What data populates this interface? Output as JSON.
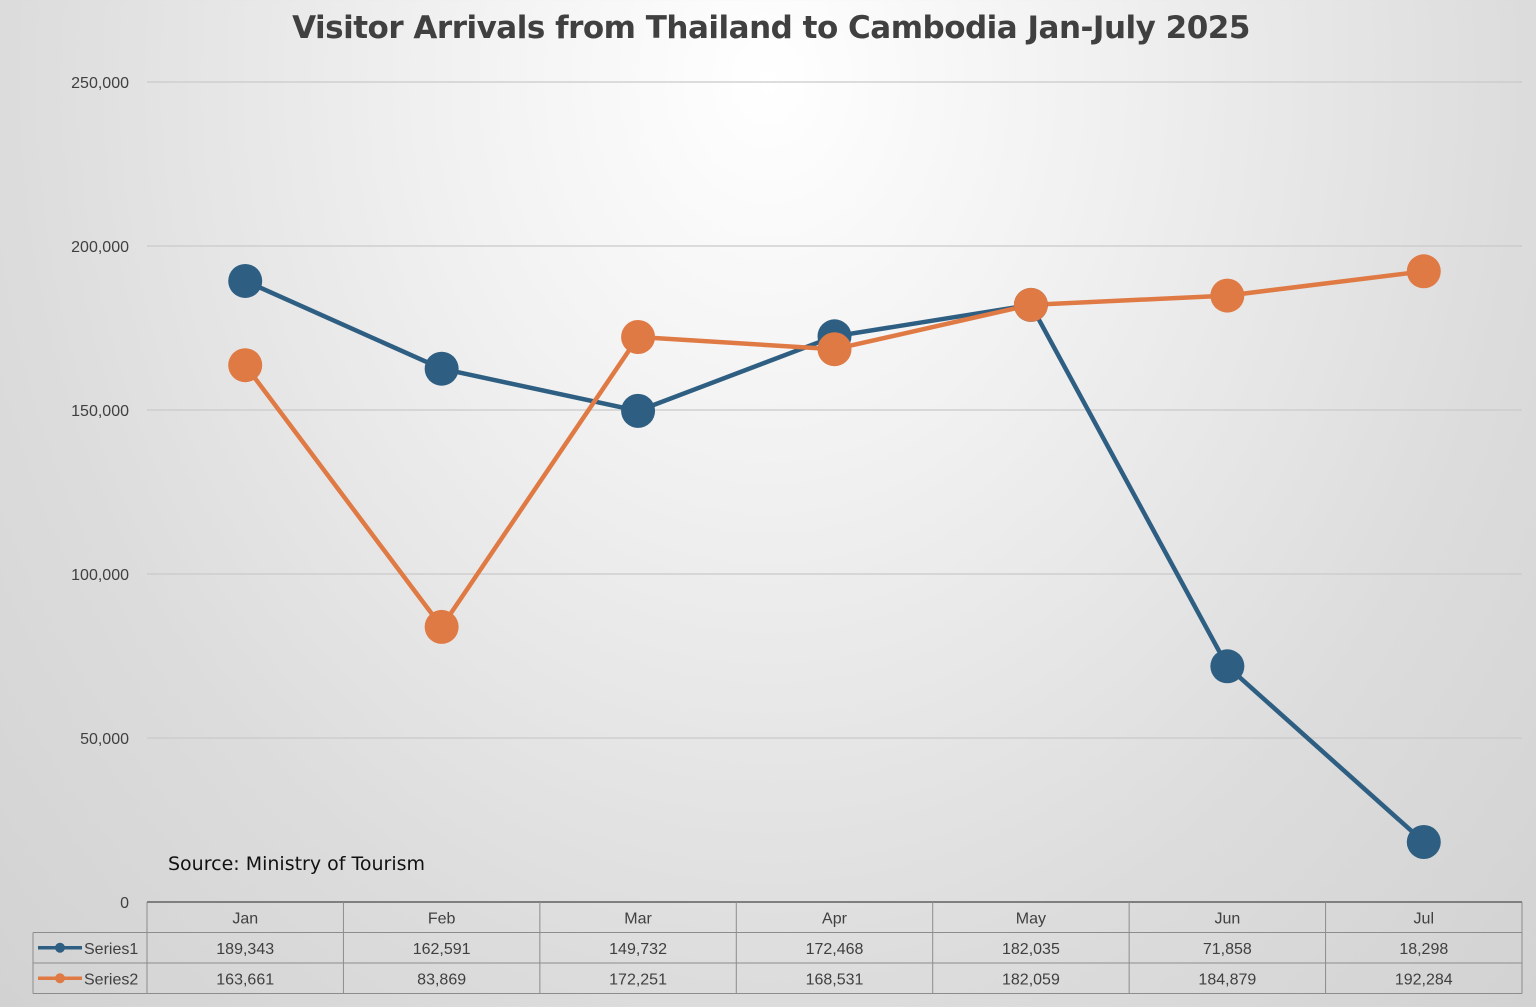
{
  "chart_data": {
    "type": "line",
    "title": "Visitor Arrivals from Thailand to Cambodia Jan-July 2025",
    "source": "Source: Ministry of Tourism",
    "categories": [
      "Jan",
      "Feb",
      "Mar",
      "Apr",
      "May",
      "Jun",
      "Jul"
    ],
    "ylim": [
      0,
      250000
    ],
    "yticks": [
      0,
      50000,
      100000,
      150000,
      200000,
      250000
    ],
    "ytick_labels": [
      "0",
      "50,000",
      "100,000",
      "150,000",
      "200,000",
      "250,000"
    ],
    "grid": true,
    "data_table": true,
    "series": [
      {
        "name": "Series1",
        "color": "#2e5f82",
        "values": [
          189343,
          162591,
          149732,
          172468,
          182035,
          71858,
          18298
        ],
        "labels": [
          "189,343",
          "162,591",
          "149,732",
          "172,468",
          "182,035",
          "71,858",
          "18,298"
        ]
      },
      {
        "name": "Series2",
        "color": "#e07a45",
        "values": [
          163661,
          83869,
          172251,
          168531,
          182059,
          184879,
          192284
        ],
        "labels": [
          "163,661",
          "83,869",
          "172,251",
          "168,531",
          "182,059",
          "184,879",
          "192,284"
        ]
      }
    ]
  }
}
